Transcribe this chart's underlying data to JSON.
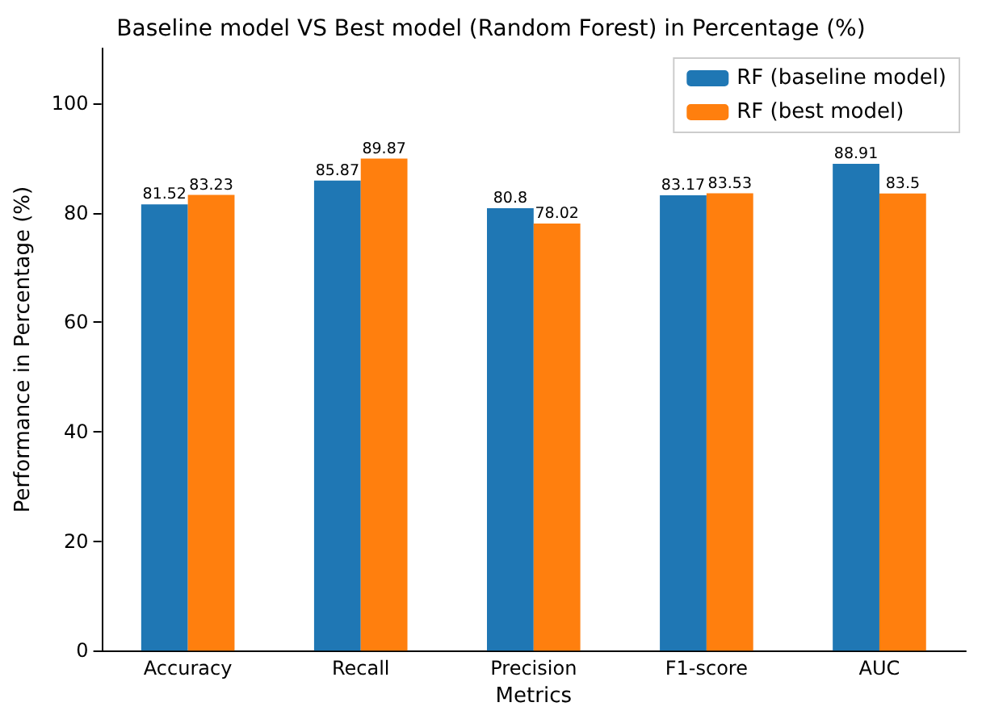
{
  "chart_data": {
    "type": "bar",
    "title": "Baseline model VS Best model (Random Forest) in Percentage (%)",
    "xlabel": "Metrics",
    "ylabel": "Performance in Percentage (%)",
    "categories": [
      "Accuracy",
      "Recall",
      "Precision",
      "F1-score",
      "AUC"
    ],
    "series": [
      {
        "name": "RF (baseline model)",
        "color": "#1f77b4",
        "values": [
          81.52,
          85.87,
          80.8,
          83.17,
          88.91
        ]
      },
      {
        "name": "RF (best model)",
        "color": "#ff7f0e",
        "values": [
          83.23,
          89.87,
          78.02,
          83.53,
          83.5
        ]
      }
    ],
    "ylim": [
      0,
      110
    ],
    "yticks": [
      0,
      20,
      40,
      60,
      80,
      100
    ],
    "data_labels": true,
    "legend": "top right",
    "grid": false
  }
}
